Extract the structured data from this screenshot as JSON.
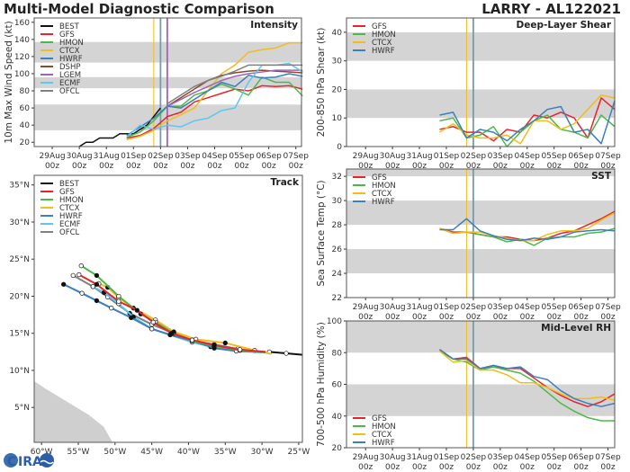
{
  "header": {
    "title": "Multi-Model Diagnostic Comparison",
    "storm": "LARRY - AL122021"
  },
  "logo": {
    "text": "CIRA"
  },
  "colors": {
    "BEST": "#111111",
    "GFS": "#e8242a",
    "HMON": "#4cb848",
    "CTCX": "#f2bc1b",
    "HWRF": "#3b7fc0",
    "DSHP": "#8b4a2a",
    "LGEM": "#a064b4",
    "ECMF": "#5cc8f0",
    "OFCL": "#808080",
    "band": "#d4d4d4"
  },
  "time_ticks": [
    "29Aug00z",
    "30Aug00z",
    "31Aug00z",
    "01Sep00z",
    "02Sep00z",
    "03Sep00z",
    "04Sep00z",
    "05Sep00z",
    "06Sep00z",
    "07Sep00z"
  ],
  "time_tick_labels": [
    [
      "29Aug",
      "00z"
    ],
    [
      "30Aug",
      "00z"
    ],
    [
      "31Aug",
      "00z"
    ],
    [
      "01Sep",
      "00z"
    ],
    [
      "02Sep",
      "00z"
    ],
    [
      "03Sep",
      "00z"
    ],
    [
      "04Sep",
      "00z"
    ],
    [
      "05Sep",
      "00z"
    ],
    [
      "06Sep",
      "00z"
    ],
    [
      "07Sep",
      "00z"
    ]
  ],
  "chart_data": [
    {
      "id": "intensity",
      "type": "line",
      "title": "Intensity",
      "ylabel": "10m Max Wind Speed (kt)",
      "xlim": [
        "28Aug08z",
        "07Sep05z"
      ],
      "ylim": [
        15,
        165
      ],
      "yticks": [
        20,
        40,
        60,
        80,
        100,
        120,
        140,
        160
      ],
      "bands": [
        [
          34,
          64
        ],
        [
          83,
          96
        ],
        [
          113,
          137
        ]
      ],
      "vlines": [
        {
          "x": "01Sep18z",
          "color": "#f2bc1b"
        },
        {
          "x": "02Sep00z",
          "color": "#7a9aaa"
        },
        {
          "x": "02Sep06z",
          "color": "#a064b4"
        }
      ],
      "legend": [
        "BEST",
        "GFS",
        "HMON",
        "CTCX",
        "HWRF",
        "DSHP",
        "LGEM",
        "ECMF",
        "OFCL"
      ],
      "legend_placement": "top-left",
      "x": [
        "31Aug18z",
        "01Sep06z",
        "01Sep18z",
        "02Sep06z",
        "02Sep18z",
        "03Sep06z",
        "03Sep18z",
        "04Sep06z",
        "04Sep18z",
        "05Sep06z",
        "05Sep18z",
        "06Sep06z",
        "06Sep18z",
        "07Sep06z"
      ],
      "series": [
        {
          "name": "BEST",
          "x": [
            "30Aug00z",
            "30Aug06z",
            "30Aug12z",
            "30Aug18z",
            "31Aug00z",
            "31Aug06z",
            "31Aug12z",
            "31Aug18z",
            "01Sep00z",
            "01Sep06z",
            "01Sep12z",
            "01Sep18z",
            "02Sep00z"
          ],
          "values": [
            15,
            20,
            20,
            25,
            25,
            25,
            30,
            30,
            30,
            35,
            40,
            50,
            60
          ]
        },
        {
          "name": "GFS",
          "values": [
            25,
            28,
            36,
            50,
            55,
            67,
            72,
            77,
            82,
            80,
            86,
            85,
            86,
            82
          ]
        },
        {
          "name": "HMON",
          "values": [
            26,
            32,
            45,
            62,
            62,
            75,
            80,
            88,
            82,
            75,
            96,
            90,
            90,
            74
          ]
        },
        {
          "name": "CTCX",
          "values": [
            23,
            27,
            34,
            45,
            52,
            60,
            80,
            100,
            110,
            125,
            128,
            130,
            136,
            136
          ]
        },
        {
          "name": "HWRF",
          "values": [
            28,
            38,
            48,
            62,
            60,
            70,
            80,
            90,
            85,
            98,
            95,
            96,
            100,
            97
          ]
        },
        {
          "name": "DSHP",
          "values": [
            null,
            null,
            null,
            62,
            72,
            82,
            92,
            98,
            101,
            103,
            104,
            103,
            102,
            101
          ]
        },
        {
          "name": "LGEM",
          "values": [
            null,
            null,
            null,
            62,
            70,
            78,
            85,
            92,
            97,
            100,
            102,
            104,
            104,
            104
          ]
        },
        {
          "name": "ECMF",
          "values": [
            26,
            40,
            35,
            40,
            38,
            45,
            48,
            57,
            60,
            90,
            110,
            110,
            112,
            102
          ]
        },
        {
          "name": "OFCL",
          "values": [
            null,
            null,
            null,
            65,
            75,
            85,
            92,
            97,
            103,
            110,
            110,
            110,
            110,
            110
          ]
        }
      ]
    },
    {
      "id": "shear",
      "type": "line",
      "title": "Deep-Layer Shear",
      "ylabel": "200-850 hPa Shear (kt)",
      "xlim": [
        "28Aug07z",
        "07Sep06z"
      ],
      "ylim": [
        0,
        45
      ],
      "yticks": [
        0,
        10,
        20,
        30,
        40
      ],
      "bands": [
        [
          10,
          20
        ],
        [
          30,
          40
        ]
      ],
      "vlines": [
        {
          "x": "01Sep18z",
          "color": "#f2bc1b"
        },
        {
          "x": "02Sep00z",
          "color": "#7a9aaa"
        }
      ],
      "legend": [
        "GFS",
        "HMON",
        "CTCX",
        "HWRF"
      ],
      "legend_placement": "top-left",
      "x": [
        "31Aug18z",
        "01Sep06z",
        "01Sep18z",
        "02Sep06z",
        "02Sep18z",
        "03Sep06z",
        "03Sep18z",
        "04Sep06z",
        "04Sep18z",
        "05Sep06z",
        "05Sep18z",
        "06Sep06z",
        "06Sep18z",
        "07Sep06z"
      ],
      "series": [
        {
          "name": "GFS",
          "values": [
            6,
            7,
            5,
            5,
            2,
            6,
            5,
            11,
            10,
            12,
            10,
            3,
            17,
            13
          ]
        },
        {
          "name": "HMON",
          "values": [
            9,
            10,
            3,
            4,
            7,
            0,
            5,
            9,
            11,
            6,
            5,
            3,
            11,
            7
          ]
        },
        {
          "name": "CTCX",
          "values": [
            5,
            8,
            4,
            3,
            3,
            4,
            1,
            9,
            9,
            6,
            8,
            13,
            18,
            17
          ]
        },
        {
          "name": "HWRF",
          "values": [
            11,
            12,
            3,
            6,
            5,
            2,
            6,
            9,
            13,
            14,
            5,
            6,
            1,
            16
          ]
        }
      ]
    },
    {
      "id": "sst",
      "type": "line",
      "title": "SST",
      "ylabel": "Sea Surface Temp (°C)",
      "xlim": [
        "28Aug07z",
        "07Sep06z"
      ],
      "ylim": [
        22,
        32.6
      ],
      "yticks": [
        22,
        24,
        26,
        28,
        30,
        32
      ],
      "bands": [
        [
          24,
          26
        ],
        [
          28,
          30
        ],
        [
          32,
          32.6
        ]
      ],
      "vlines": [
        {
          "x": "01Sep18z",
          "color": "#f2bc1b"
        },
        {
          "x": "02Sep00z",
          "color": "#7a9aaa"
        }
      ],
      "legend": [
        "GFS",
        "HMON",
        "CTCX",
        "HWRF"
      ],
      "legend_placement": "top-left",
      "x": [
        "31Aug18z",
        "01Sep06z",
        "01Sep18z",
        "02Sep06z",
        "02Sep18z",
        "03Sep06z",
        "03Sep18z",
        "04Sep06z",
        "04Sep18z",
        "05Sep06z",
        "05Sep18z",
        "06Sep06z",
        "06Sep18z",
        "07Sep06z"
      ],
      "series": [
        {
          "name": "GFS",
          "values": [
            27.7,
            27.4,
            27.4,
            27.2,
            27.0,
            27.0,
            26.8,
            26.7,
            26.9,
            27.3,
            27.5,
            28.0,
            28.5,
            29.1
          ]
        },
        {
          "name": "HMON",
          "values": [
            27.7,
            27.3,
            27.4,
            27.2,
            27.0,
            26.6,
            26.8,
            26.3,
            26.9,
            27.0,
            27.0,
            27.3,
            27.4,
            27.7
          ]
        },
        {
          "name": "CTCX",
          "values": [
            27.7,
            27.3,
            27.4,
            27.4,
            27.1,
            26.9,
            26.7,
            26.7,
            27.2,
            27.5,
            27.5,
            27.7,
            28.4,
            29.0
          ]
        },
        {
          "name": "HWRF",
          "values": [
            27.6,
            27.6,
            28.5,
            27.5,
            27.1,
            26.8,
            26.7,
            26.9,
            26.8,
            27.0,
            27.4,
            27.5,
            27.6,
            27.5
          ]
        }
      ]
    },
    {
      "id": "rh",
      "type": "line",
      "title": "Mid-Level RH",
      "ylabel": "700-500 hPa Humidity (%)",
      "xlim": [
        "28Aug07z",
        "07Sep06z"
      ],
      "ylim": [
        20,
        100
      ],
      "yticks": [
        20,
        40,
        60,
        80,
        100
      ],
      "bands": [
        [
          40,
          60
        ],
        [
          80,
          100
        ]
      ],
      "vlines": [
        {
          "x": "01Sep18z",
          "color": "#f2bc1b"
        },
        {
          "x": "02Sep00z",
          "color": "#7a9aaa"
        }
      ],
      "legend": [
        "GFS",
        "HMON",
        "CTCX",
        "HWRF"
      ],
      "legend_placement": "bottom-left",
      "x": [
        "31Aug18z",
        "01Sep06z",
        "01Sep18z",
        "02Sep06z",
        "02Sep18z",
        "03Sep06z",
        "03Sep18z",
        "04Sep06z",
        "04Sep18z",
        "05Sep06z",
        "05Sep18z",
        "06Sep06z",
        "06Sep18z",
        "07Sep06z"
      ],
      "series": [
        {
          "name": "GFS",
          "values": [
            82,
            76,
            77,
            70,
            71,
            70,
            70,
            64,
            58,
            53,
            49,
            46,
            49,
            54
          ]
        },
        {
          "name": "HMON",
          "values": [
            81,
            76,
            74,
            69,
            71,
            69,
            67,
            62,
            55,
            48,
            43,
            39,
            37,
            37
          ]
        },
        {
          "name": "CTCX",
          "values": [
            81,
            74,
            75,
            69,
            69,
            66,
            61,
            61,
            58,
            54,
            51,
            51,
            52,
            50
          ]
        },
        {
          "name": "HWRF",
          "values": [
            82,
            76,
            76,
            70,
            72,
            70,
            71,
            65,
            63,
            56,
            51,
            48,
            46,
            48
          ]
        }
      ]
    },
    {
      "id": "track",
      "type": "line",
      "title": "Track",
      "xlim": [
        -61,
        -24.5
      ],
      "ylim": [
        0.3,
        36.3
      ],
      "xticks": [
        -60,
        -55,
        -50,
        -45,
        -40,
        -35,
        -30,
        -25
      ],
      "xtick_labels": [
        "60°W",
        "55°W",
        "50°W",
        "45°W",
        "40°W",
        "35°W",
        "30°W",
        "25°W"
      ],
      "yticks": [
        5,
        10,
        15,
        20,
        25,
        30,
        35
      ],
      "ytick_labels": [
        "5°N",
        "10°N",
        "15°N",
        "20°N",
        "25°N",
        "30°N",
        "35°N"
      ],
      "legend": [
        "BEST",
        "GFS",
        "HMON",
        "CTCX",
        "HWRF",
        "ECMF",
        "OFCL"
      ],
      "legend_placement": "top-left",
      "series": [
        {
          "name": "BEST",
          "lonlat": [
            [
              -24.5,
              12.1
            ],
            [
              -26.7,
              12.3
            ],
            [
              -29,
              12.5
            ]
          ]
        },
        {
          "name": "OFCL",
          "lonlat": [
            [
              -30.5,
              12.5
            ],
            [
              -33.3,
              12.9
            ],
            [
              -36.5,
              13.5
            ],
            [
              -39.3,
              14.0
            ],
            [
              -42,
              15.0
            ],
            [
              -45,
              16.2
            ],
            [
              -48,
              17.7
            ],
            [
              -51,
              19.9
            ],
            [
              -53,
              21.3
            ],
            [
              -55.7,
              22.8
            ]
          ]
        },
        {
          "name": "ECMF",
          "lonlat": [
            [
              -29.8,
              12.4
            ],
            [
              -33.5,
              12.6
            ],
            [
              -37,
              13.2
            ],
            [
              -39.5,
              13.8
            ],
            [
              -42.5,
              14.8
            ],
            [
              -45,
              15.6
            ],
            [
              -47.5,
              17.2
            ],
            [
              -49.5,
              19.0
            ],
            [
              -51.5,
              20.5
            ],
            [
              -53,
              21.3
            ]
          ]
        },
        {
          "name": "HWRF",
          "lonlat": [
            [
              -29.8,
              12.5
            ],
            [
              -33.5,
              12.6
            ],
            [
              -36.5,
              13.0
            ],
            [
              -39.5,
              14.0
            ],
            [
              -42.5,
              14.8
            ],
            [
              -45,
              15.6
            ],
            [
              -47.8,
              17.1
            ],
            [
              -50.5,
              18.4
            ],
            [
              -52.5,
              19.4
            ],
            [
              -54.5,
              20.4
            ],
            [
              -57,
              21.6
            ]
          ]
        },
        {
          "name": "CTCX",
          "lonlat": [
            [
              -28.7,
              12.2
            ],
            [
              -31,
              12.7
            ],
            [
              -35,
              13.7
            ],
            [
              -39,
              14.2
            ],
            [
              -42,
              15.2
            ],
            [
              -44.5,
              16.8
            ],
            [
              -47.5,
              18.4
            ],
            [
              -49.5,
              19.8
            ],
            [
              -51,
              21.2
            ],
            [
              -52.2,
              21.7
            ]
          ]
        },
        {
          "name": "HMON",
          "lonlat": [
            [
              -29.5,
              12.4
            ],
            [
              -33,
              12.7
            ],
            [
              -36.5,
              13.3
            ],
            [
              -39.5,
              14.0
            ],
            [
              -42,
              15.0
            ],
            [
              -44.5,
              16.5
            ],
            [
              -46.5,
              17.6
            ],
            [
              -49.5,
              20.0
            ],
            [
              -52.5,
              22.8
            ],
            [
              -54.6,
              24.1
            ]
          ]
        },
        {
          "name": "GFS",
          "lonlat": [
            [
              -29.5,
              12.5
            ],
            [
              -33,
              12.8
            ],
            [
              -36.5,
              13.4
            ],
            [
              -39.5,
              14.1
            ],
            [
              -42.3,
              15.0
            ],
            [
              -44.8,
              16.5
            ],
            [
              -47,
              18.1
            ],
            [
              -49.5,
              19.3
            ],
            [
              -52.5,
              21.6
            ],
            [
              -54.9,
              22.9
            ]
          ]
        }
      ]
    }
  ]
}
